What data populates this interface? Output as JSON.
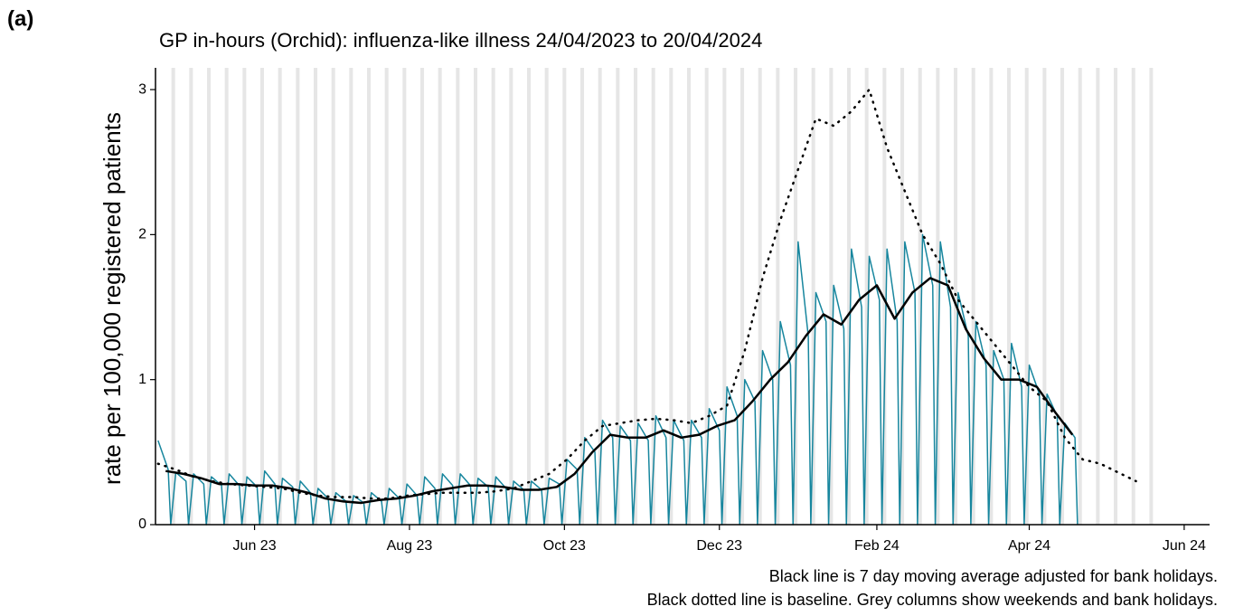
{
  "chart_data": {
    "type": "line",
    "panel_label": "(a)",
    "title": "GP in-hours (Orchid): influenza-like illness 24/04/2023 to 20/04/2024",
    "y_label": "rate per 100,000 registered patients",
    "notes": [
      "Black line is 7 day moving average adjusted for bank holidays.",
      "Black dotted line is baseline. Grey columns show weekends and bank holidays."
    ],
    "xlim": [
      "2023-04-23",
      "2024-06-11"
    ],
    "xticks": [
      {
        "value": "2023-06-01",
        "label": "Jun 23"
      },
      {
        "value": "2023-08-01",
        "label": "Aug 23"
      },
      {
        "value": "2023-10-01",
        "label": "Oct 23"
      },
      {
        "value": "2023-12-01",
        "label": "Dec 23"
      },
      {
        "value": "2024-02-01",
        "label": "Feb 24"
      },
      {
        "value": "2024-04-01",
        "label": "Apr 24"
      },
      {
        "value": "2024-06-01",
        "label": "Jun 24"
      }
    ],
    "ylim": [
      0,
      3.15
    ],
    "yticks": [
      0,
      1,
      2,
      3
    ],
    "shade_weekends": true,
    "series": [
      {
        "color": "#17869e",
        "style": "solid",
        "width": 1.5,
        "x": [
          "2023-04-24",
          "2023-04-28",
          "2023-04-29",
          "2023-05-01",
          "2023-05-05",
          "2023-05-06",
          "2023-05-08",
          "2023-05-12",
          "2023-05-13",
          "2023-05-15",
          "2023-05-19",
          "2023-05-20",
          "2023-05-22",
          "2023-05-26",
          "2023-05-27",
          "2023-05-29",
          "2023-06-02",
          "2023-06-03",
          "2023-06-05",
          "2023-06-09",
          "2023-06-10",
          "2023-06-12",
          "2023-06-16",
          "2023-06-17",
          "2023-06-19",
          "2023-06-23",
          "2023-06-24",
          "2023-06-26",
          "2023-06-30",
          "2023-07-01",
          "2023-07-03",
          "2023-07-07",
          "2023-07-08",
          "2023-07-10",
          "2023-07-14",
          "2023-07-15",
          "2023-07-17",
          "2023-07-21",
          "2023-07-22",
          "2023-07-24",
          "2023-07-28",
          "2023-07-29",
          "2023-07-31",
          "2023-08-04",
          "2023-08-05",
          "2023-08-07",
          "2023-08-11",
          "2023-08-12",
          "2023-08-14",
          "2023-08-18",
          "2023-08-19",
          "2023-08-21",
          "2023-08-25",
          "2023-08-26",
          "2023-08-28",
          "2023-09-01",
          "2023-09-02",
          "2023-09-04",
          "2023-09-08",
          "2023-09-09",
          "2023-09-11",
          "2023-09-15",
          "2023-09-16",
          "2023-09-18",
          "2023-09-22",
          "2023-09-23",
          "2023-09-25",
          "2023-09-29",
          "2023-09-30",
          "2023-10-02",
          "2023-10-06",
          "2023-10-07",
          "2023-10-09",
          "2023-10-13",
          "2023-10-14",
          "2023-10-16",
          "2023-10-20",
          "2023-10-21",
          "2023-10-23",
          "2023-10-27",
          "2023-10-28",
          "2023-10-30",
          "2023-11-03",
          "2023-11-04",
          "2023-11-06",
          "2023-11-10",
          "2023-11-11",
          "2023-11-13",
          "2023-11-17",
          "2023-11-18",
          "2023-11-20",
          "2023-11-24",
          "2023-11-25",
          "2023-11-27",
          "2023-12-01",
          "2023-12-02",
          "2023-12-04",
          "2023-12-08",
          "2023-12-09",
          "2023-12-11",
          "2023-12-15",
          "2023-12-16",
          "2023-12-18",
          "2023-12-22",
          "2023-12-23",
          "2023-12-25",
          "2023-12-29",
          "2023-12-30",
          "2024-01-01",
          "2024-01-05",
          "2024-01-06",
          "2024-01-08",
          "2024-01-12",
          "2024-01-13",
          "2024-01-15",
          "2024-01-19",
          "2024-01-20",
          "2024-01-22",
          "2024-01-26",
          "2024-01-27",
          "2024-01-29",
          "2024-02-02",
          "2024-02-03",
          "2024-02-05",
          "2024-02-09",
          "2024-02-10",
          "2024-02-12",
          "2024-02-16",
          "2024-02-17",
          "2024-02-19",
          "2024-02-23",
          "2024-02-24",
          "2024-02-26",
          "2024-03-01",
          "2024-03-02",
          "2024-03-04",
          "2024-03-08",
          "2024-03-09",
          "2024-03-11",
          "2024-03-15",
          "2024-03-16",
          "2024-03-18",
          "2024-03-22",
          "2024-03-23",
          "2024-03-25",
          "2024-03-29",
          "2024-03-30",
          "2024-04-01",
          "2024-04-05",
          "2024-04-06",
          "2024-04-08",
          "2024-04-12",
          "2024-04-13",
          "2024-04-15",
          "2024-04-19",
          "2024-04-20"
        ],
        "values": [
          0.58,
          0.38,
          0,
          0.36,
          0.3,
          0,
          0.35,
          0.28,
          0,
          0.33,
          0.27,
          0,
          0.35,
          0.27,
          0,
          0.33,
          0.26,
          0,
          0.37,
          0.28,
          0,
          0.32,
          0.26,
          0,
          0.3,
          0.22,
          0,
          0.25,
          0.18,
          0,
          0.22,
          0.16,
          0,
          0.2,
          0.15,
          0,
          0.22,
          0.16,
          0,
          0.25,
          0.18,
          0,
          0.28,
          0.2,
          0,
          0.33,
          0.25,
          0,
          0.35,
          0.27,
          0,
          0.35,
          0.27,
          0,
          0.32,
          0.26,
          0,
          0.33,
          0.25,
          0,
          0.3,
          0.24,
          0,
          0.3,
          0.24,
          0,
          0.32,
          0.28,
          0,
          0.45,
          0.38,
          0,
          0.6,
          0.5,
          0,
          0.72,
          0.6,
          0,
          0.68,
          0.58,
          0,
          0.7,
          0.58,
          0,
          0.75,
          0.6,
          0,
          0.72,
          0.58,
          0,
          0.72,
          0.6,
          0,
          0.8,
          0.65,
          0,
          0.95,
          0.75,
          0,
          1.0,
          0.85,
          0,
          1.2,
          1.0,
          0,
          1.4,
          1.1,
          0,
          1.95,
          1.3,
          0,
          1.6,
          1.4,
          0,
          1.65,
          1.35,
          0,
          1.9,
          1.5,
          0,
          1.85,
          1.55,
          0,
          1.9,
          1.4,
          0,
          1.95,
          1.6,
          0,
          2.0,
          1.65,
          0,
          1.95,
          1.5,
          0,
          1.6,
          1.3,
          0,
          1.4,
          1.1,
          0,
          1.2,
          1.0,
          0,
          1.25,
          0.95,
          0,
          1.1,
          0.9,
          0,
          0.9,
          0.75,
          0,
          0.7,
          0.6,
          0
        ]
      },
      {
        "color": "#000000",
        "style": "solid",
        "width": 2.5,
        "x": [
          "2023-04-27",
          "2023-05-04",
          "2023-05-11",
          "2023-05-18",
          "2023-05-25",
          "2023-06-01",
          "2023-06-08",
          "2023-06-15",
          "2023-06-22",
          "2023-06-29",
          "2023-07-06",
          "2023-07-13",
          "2023-07-20",
          "2023-07-27",
          "2023-08-03",
          "2023-08-10",
          "2023-08-17",
          "2023-08-24",
          "2023-08-31",
          "2023-09-07",
          "2023-09-14",
          "2023-09-21",
          "2023-09-28",
          "2023-10-05",
          "2023-10-12",
          "2023-10-19",
          "2023-10-26",
          "2023-11-02",
          "2023-11-09",
          "2023-11-16",
          "2023-11-23",
          "2023-11-30",
          "2023-12-07",
          "2023-12-14",
          "2023-12-21",
          "2023-12-28",
          "2024-01-04",
          "2024-01-11",
          "2024-01-18",
          "2024-01-25",
          "2024-02-01",
          "2024-02-08",
          "2024-02-15",
          "2024-02-22",
          "2024-02-29",
          "2024-03-07",
          "2024-03-14",
          "2024-03-21",
          "2024-03-28",
          "2024-04-04",
          "2024-04-11",
          "2024-04-18"
        ],
        "values": [
          0.37,
          0.35,
          0.32,
          0.28,
          0.28,
          0.27,
          0.27,
          0.25,
          0.22,
          0.18,
          0.16,
          0.15,
          0.17,
          0.18,
          0.2,
          0.23,
          0.25,
          0.27,
          0.27,
          0.26,
          0.24,
          0.24,
          0.26,
          0.35,
          0.5,
          0.62,
          0.6,
          0.6,
          0.65,
          0.6,
          0.62,
          0.68,
          0.72,
          0.85,
          1.0,
          1.12,
          1.3,
          1.45,
          1.38,
          1.55,
          1.65,
          1.42,
          1.6,
          1.7,
          1.65,
          1.35,
          1.15,
          1.0,
          1.0,
          0.95,
          0.78,
          0.62
        ]
      },
      {
        "color": "#000000",
        "style": "dotted",
        "width": 2.5,
        "x": [
          "2023-04-24",
          "2023-05-01",
          "2023-05-08",
          "2023-05-15",
          "2023-05-22",
          "2023-05-29",
          "2023-06-05",
          "2023-06-12",
          "2023-06-19",
          "2023-06-26",
          "2023-07-03",
          "2023-07-10",
          "2023-07-17",
          "2023-07-24",
          "2023-07-31",
          "2023-08-07",
          "2023-08-14",
          "2023-08-21",
          "2023-08-28",
          "2023-09-04",
          "2023-09-11",
          "2023-09-18",
          "2023-09-25",
          "2023-10-02",
          "2023-10-09",
          "2023-10-16",
          "2023-10-23",
          "2023-10-30",
          "2023-11-06",
          "2023-11-13",
          "2023-11-20",
          "2023-11-27",
          "2023-12-04",
          "2023-12-11",
          "2023-12-18",
          "2023-12-25",
          "2024-01-01",
          "2024-01-08",
          "2024-01-15",
          "2024-01-22",
          "2024-01-29",
          "2024-02-05",
          "2024-02-12",
          "2024-02-19",
          "2024-02-26",
          "2024-03-04",
          "2024-03-11",
          "2024-03-18",
          "2024-03-25",
          "2024-04-01",
          "2024-04-08",
          "2024-04-15",
          "2024-04-22",
          "2024-04-29",
          "2024-05-06",
          "2024-05-13"
        ],
        "values": [
          0.42,
          0.38,
          0.33,
          0.3,
          0.28,
          0.27,
          0.26,
          0.25,
          0.22,
          0.2,
          0.19,
          0.19,
          0.18,
          0.18,
          0.2,
          0.21,
          0.22,
          0.22,
          0.22,
          0.23,
          0.25,
          0.3,
          0.35,
          0.45,
          0.58,
          0.68,
          0.7,
          0.72,
          0.73,
          0.72,
          0.7,
          0.75,
          0.82,
          1.2,
          1.7,
          2.1,
          2.45,
          2.8,
          2.75,
          2.85,
          3.0,
          2.6,
          2.3,
          2.0,
          1.8,
          1.55,
          1.4,
          1.25,
          1.1,
          0.95,
          0.85,
          0.6,
          0.45,
          0.42,
          0.36,
          0.3
        ]
      }
    ]
  }
}
